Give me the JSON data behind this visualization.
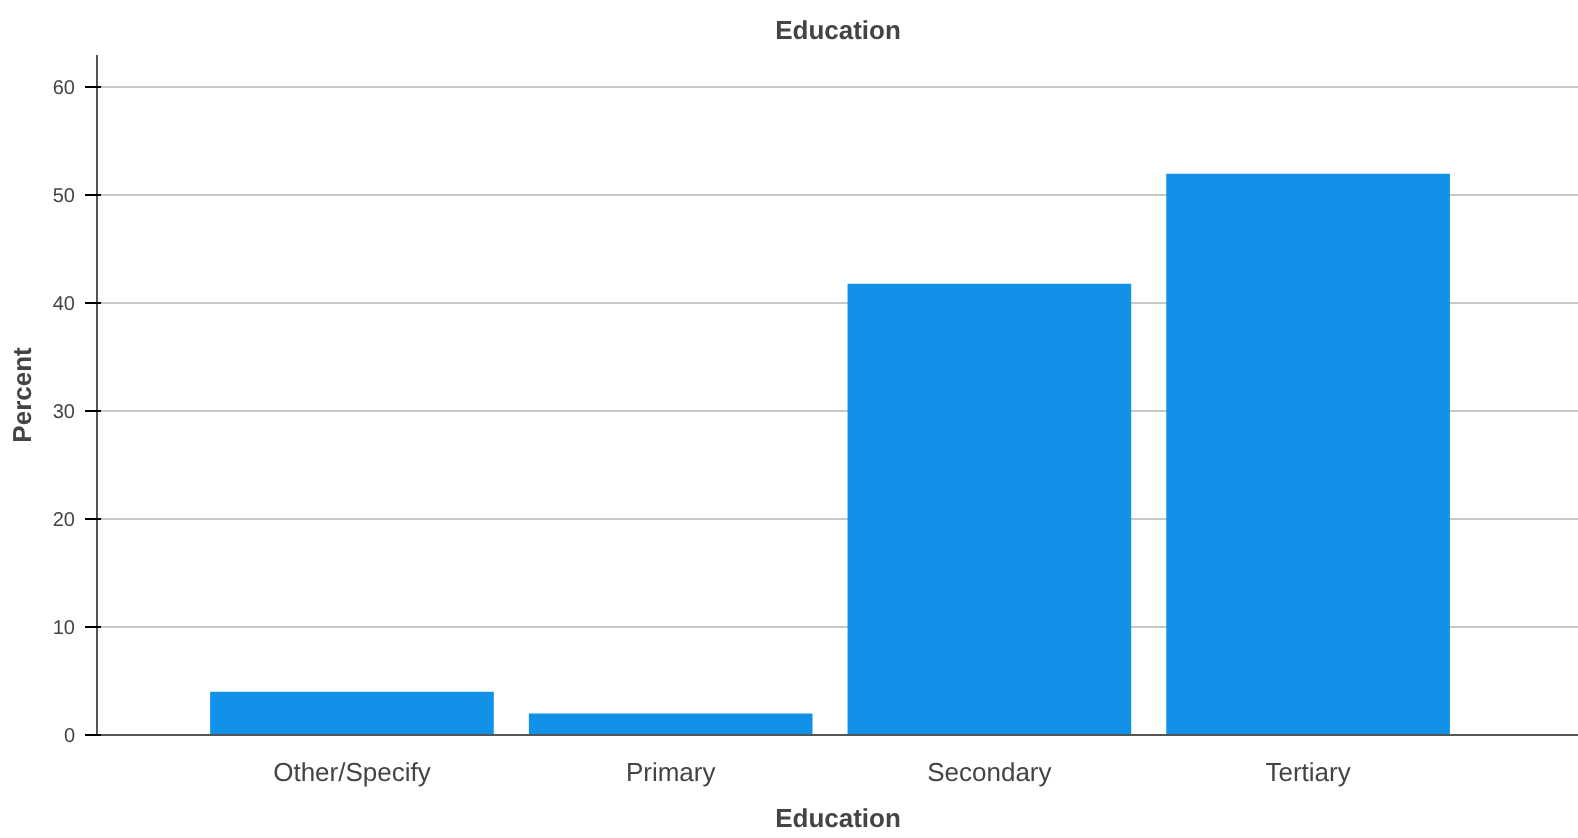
{
  "chart_data": {
    "type": "bar",
    "title": "Education",
    "xlabel": "Education",
    "ylabel": "Percent",
    "categories": [
      "Other/Specify",
      "Primary",
      "Secondary",
      "Tertiary"
    ],
    "values": [
      4.0,
      2.0,
      41.8,
      52.0
    ],
    "color": "#1192e8",
    "ylim": [
      0,
      63
    ],
    "yticks": [
      0,
      10,
      20,
      30,
      40,
      50,
      60
    ],
    "grid": "y"
  }
}
